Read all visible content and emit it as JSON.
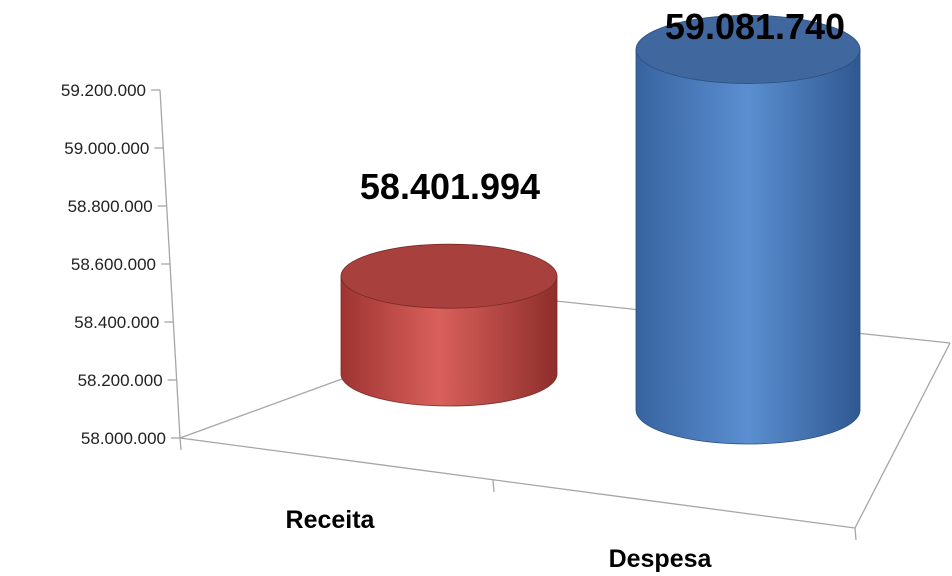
{
  "chart_data": {
    "type": "bar",
    "style": "3d-cylinder",
    "categories": [
      "Receita",
      "Despesa"
    ],
    "values": [
      58401994,
      59081740
    ],
    "data_labels": [
      "58.401.994",
      "59.081.740"
    ],
    "ylim": [
      58000000,
      59200000
    ],
    "yticks": [
      58000000,
      58200000,
      58400000,
      58600000,
      58800000,
      59000000,
      59200000
    ],
    "ytick_labels": [
      "58.000.000",
      "58.200.000",
      "58.400.000",
      "58.600.000",
      "58.800.000",
      "59.000.000",
      "59.200.000"
    ],
    "colors": [
      "#c0504d",
      "#4f81bd"
    ],
    "grid": false,
    "legend": "none",
    "title": "",
    "xlabel": "",
    "ylabel": ""
  }
}
